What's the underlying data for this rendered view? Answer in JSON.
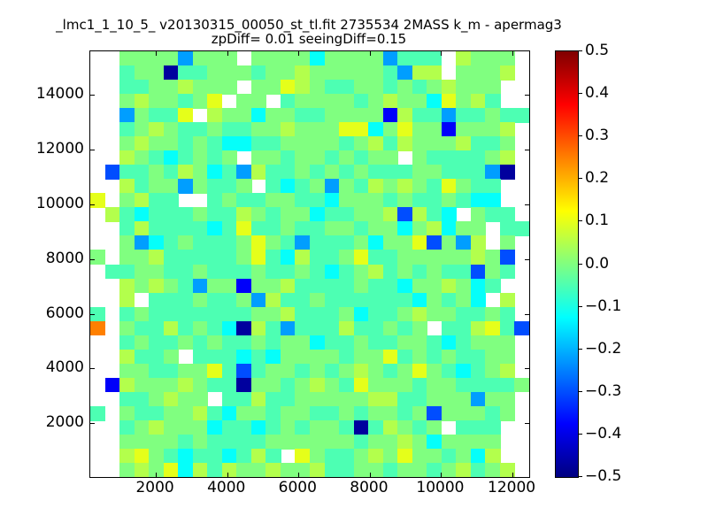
{
  "title": "_lmc1_1_10_5_ v20130315_00050_st_tl.fit 2735534 2MASS k_m - apermag3",
  "subtitle": "zpDiff= 0.01 seeingDiff=0.15",
  "chart_data": {
    "type": "heatmap",
    "colormap": "jet",
    "vmin": -0.5,
    "vmax": 0.5,
    "x_range": [
      160,
      12470
    ],
    "y_range": [
      30,
      15600
    ],
    "x_ticks": [
      2000,
      4000,
      6000,
      8000,
      10000,
      12000
    ],
    "x_tick_labels": [
      "2000",
      "4000",
      "6000",
      "8000",
      "10000",
      "12000"
    ],
    "y_ticks": [
      2000,
      4000,
      6000,
      8000,
      10000,
      12000,
      14000
    ],
    "y_tick_labels": [
      "2000",
      "4000",
      "6000",
      "8000",
      "10000",
      "12000",
      "14000"
    ],
    "colorbar_tick_values": [
      0.5,
      0.4,
      0.3,
      0.2,
      0.1,
      0.0,
      -0.1,
      -0.2,
      -0.3,
      -0.4,
      -0.5
    ],
    "colorbar_tick_labels": [
      "0.5",
      "0.4",
      "0.3",
      "0.2",
      "0.1",
      "0.0",
      "−0.1",
      "−0.2",
      "−0.3",
      "−0.4",
      "−0.5"
    ],
    "grid": {
      "n_rows": 30,
      "n_cols": 30,
      "note": "rows listed top-to-bottom; each char is one cell; legend maps char to value; '.' = missing (white)",
      "legend": {
        ".": null,
        "g": 0.0,
        "h": 0.05,
        "y": 0.1,
        "t": -0.05,
        "c": -0.12,
        "s": -0.22,
        "b": -0.3,
        "B": -0.38,
        "n": -0.47,
        "o": 0.25
      },
      "rows": [
        "..ggggsggg.ggggcggggsttt.hggg.",
        "..tggnttgggtgghgggggtshh.gggh.",
        "..ttgghggg.ggyhgttggtgtghggg..",
        "..ghggtgy.gg.tggggtghggcyght..",
        "..sgtty.hggcggttggggBhttsttgtt",
        "..tghgttgttgghgggyycgyggBgggh.",
        "..ghggtgtccttggggtghthggghttg.",
        "..hgtctgtg.ggtggtgtgg.gttttgh.",
        ".bttgthgctshttgtgtgtttggtttsn.",
        "..htggsgttg.tctgsgthghgtygtt..",
        "y.ghtt..tgttggttcgggtgttgtcc..",
        ".htctttgtthgtggcttgghbhtc.gtt.",
        "..thttttctyttgttggtggcghcgg.tt",
        "..gsctgtttgygtstttgcggybgsh.g.",
        "g.gghtttttgytchttgyttggggghgb.",
        ".ttggttgtttgttgtctghtgtgttbgt.",
        "..hghgtsggBgghttttgttcgghgct..",
        "..h.tttgttgshttgttttttcgtgc.h.",
        "t.tgtttttttgghtttgcttghggttgt.",
        "o.gtthtgtcnhtsttthttgtg.tthytb",
        "..tgttgtgttgtggcttgttggtctggg.",
        "..httg.tttctcggggtggytgtgttgg.",
        "..ggttggytbtggtgtghgtgygtctgh.",
        ".Bhggghgttnggtghgtygggtggttttg",
        "..ttghgg.tthttggggghhttgggsgg.",
        "t.gttgghtcggtggttgtggtgbgggtg.",
        "..tghgggcttctgtggtnthgtg.ttt..",
        "..ggggtgttttggggggtgghgcgggg..",
        "..hygtcttctht.ygttghgyggtgch..",
        "..ghgychthgghgghttggtggtghtgh."
      ]
    }
  }
}
